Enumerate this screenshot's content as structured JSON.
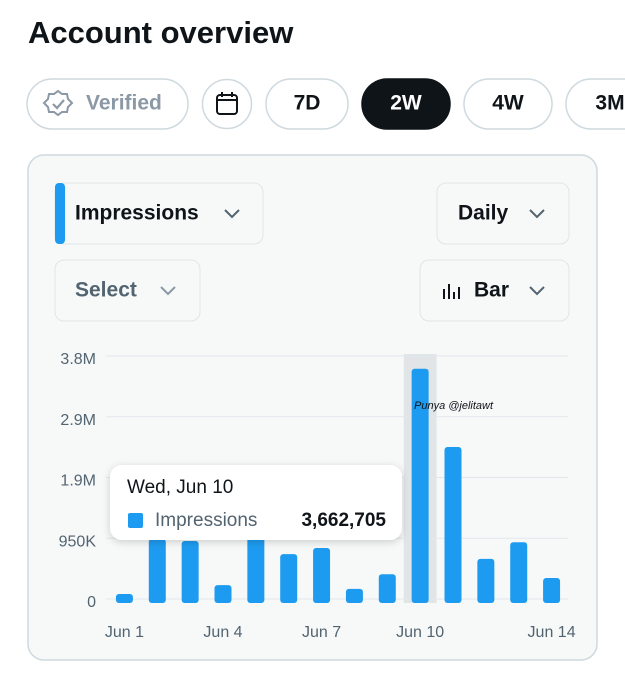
{
  "header": {
    "title": "Account overview"
  },
  "chips": {
    "verified": "Verified",
    "ranges": [
      "7D",
      "2W",
      "4W",
      "3M"
    ],
    "active_range": 1
  },
  "filters": {
    "metric": "Impressions",
    "interval": "Daily",
    "compare": "Select",
    "chart_style": "Bar"
  },
  "chart_data": {
    "type": "bar",
    "categories": [
      "Jun 1",
      null,
      null,
      "Jun 4",
      null,
      null,
      "Jun 7",
      null,
      null,
      "Jun 10",
      null,
      null,
      null,
      "Jun 14"
    ],
    "series": [
      {
        "name": "Impressions",
        "color": "#1d9bf0",
        "values": [
          140000,
          1000000,
          970000,
          280000,
          1050000,
          765000,
          860000,
          220000,
          450000,
          3662705,
          2440000,
          690000,
          950000,
          390000
        ],
        "value_labels": [
          null,
          null,
          null,
          null,
          null,
          null,
          null,
          null,
          null,
          "3,662,705",
          null,
          null,
          null,
          null
        ]
      }
    ],
    "ylim": [
      0,
      3800000
    ],
    "yticks": [
      0,
      {
        "value": 950000,
        "label": "950K"
      },
      {
        "value": 1900000,
        "label": "1.9M"
      },
      {
        "value": 2850000,
        "label": "2.9M"
      },
      {
        "value": 3800000,
        "label": "3.8M"
      }
    ],
    "grid": true,
    "highlight": 9,
    "tooltip": {
      "title": "Wed, Jun 10"
    },
    "annotation": "Punya @jelitawt"
  }
}
